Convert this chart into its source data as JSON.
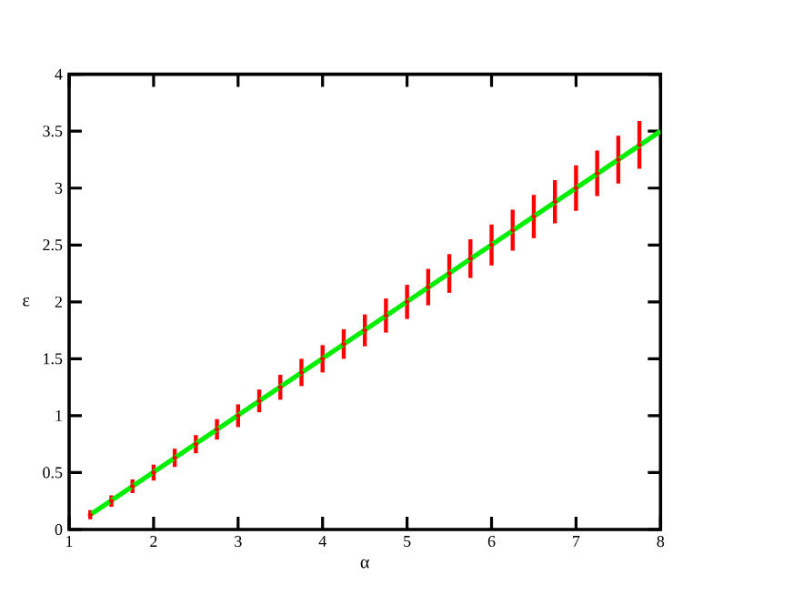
{
  "chart_data": {
    "type": "scatter",
    "xlabel": "α",
    "ylabel": "ε",
    "xlim": [
      1,
      8
    ],
    "ylim": [
      0,
      4
    ],
    "xticks": [
      1,
      2,
      3,
      4,
      5,
      6,
      7,
      8
    ],
    "yticks": [
      0,
      0.5,
      1,
      1.5,
      2,
      2.5,
      3,
      3.5,
      4
    ],
    "grid": false,
    "marker": "circle",
    "series": [
      {
        "color": "#ff0000",
        "x": [
          1.25,
          1.5,
          1.75,
          2,
          2.25,
          2.5,
          2.75,
          3,
          3.25,
          3.5,
          3.75,
          4,
          4.25,
          4.5,
          4.75,
          5,
          5.25,
          5.5,
          5.75,
          6,
          6.25,
          6.5,
          6.75,
          7,
          7.25,
          7.5,
          7.75
        ],
        "values": [
          0.13,
          0.25,
          0.38,
          0.5,
          0.63,
          0.75,
          0.88,
          1.0,
          1.13,
          1.25,
          1.38,
          1.5,
          1.63,
          1.75,
          1.88,
          2.0,
          2.13,
          2.25,
          2.38,
          2.5,
          2.63,
          2.75,
          2.88,
          3.0,
          3.13,
          3.25,
          3.38
        ],
        "errors": [
          0.04,
          0.05,
          0.06,
          0.07,
          0.08,
          0.08,
          0.09,
          0.1,
          0.1,
          0.11,
          0.12,
          0.12,
          0.13,
          0.14,
          0.15,
          0.15,
          0.16,
          0.17,
          0.17,
          0.18,
          0.18,
          0.19,
          0.19,
          0.2,
          0.2,
          0.21,
          0.21
        ]
      },
      {
        "type": "line",
        "color": "#00ee00",
        "line_style": "solid",
        "marker": "none",
        "x": [
          1.25,
          8
        ],
        "values": [
          0.13,
          3.5
        ]
      }
    ]
  }
}
